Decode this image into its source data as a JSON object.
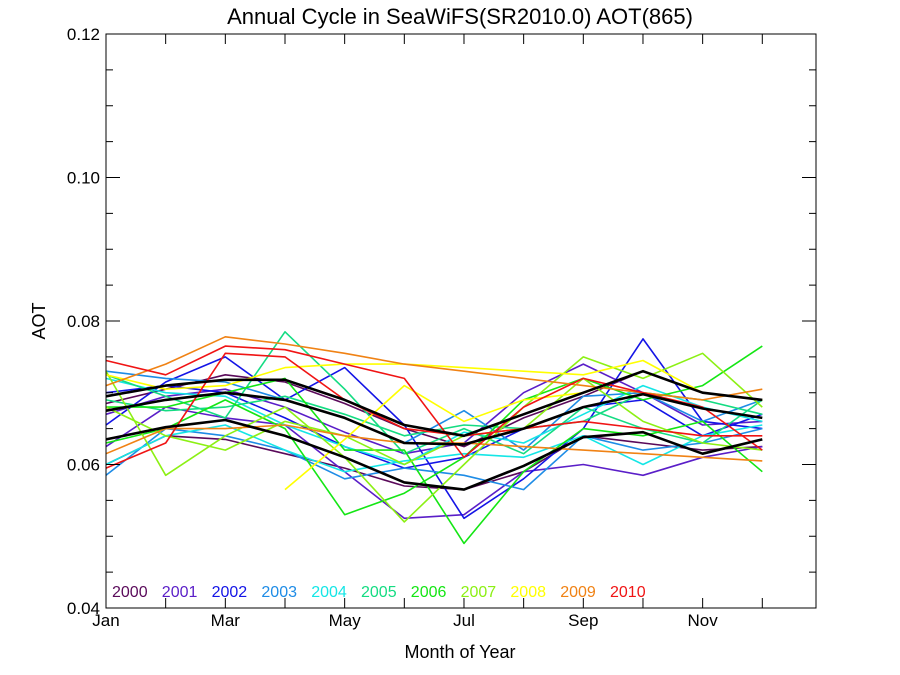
{
  "chart_data": {
    "type": "line",
    "title": "Annual Cycle in SeaWiFS(SR2010.0) AOT(865)",
    "xlabel": "Month of Year",
    "ylabel": "AOT",
    "xlim": [
      1,
      12.9
    ],
    "ylim": [
      0.04,
      0.12
    ],
    "x_ticks": [
      {
        "value": 1,
        "label": "Jan"
      },
      {
        "value": 3,
        "label": "Mar"
      },
      {
        "value": 5,
        "label": "May"
      },
      {
        "value": 7,
        "label": "Jul"
      },
      {
        "value": 9,
        "label": "Sep"
      },
      {
        "value": 11,
        "label": "Nov"
      }
    ],
    "y_ticks": [
      {
        "value": 0.04,
        "label": "0.04"
      },
      {
        "value": 0.06,
        "label": "0.06"
      },
      {
        "value": 0.08,
        "label": "0.08"
      },
      {
        "value": 0.1,
        "label": "0.10"
      },
      {
        "value": 0.12,
        "label": "0.12"
      }
    ],
    "legend_position": "bottom-left",
    "series": [
      {
        "name": "2000",
        "color": "#5a0a5a",
        "x": [
          1,
          2,
          3,
          4,
          5,
          6,
          7,
          8,
          9,
          10,
          11,
          12
        ],
        "values": [
          0.06,
          0.064,
          0.0635,
          0.0615,
          0.0595,
          0.057,
          0.0565,
          0.059,
          0.064,
          0.063,
          0.062,
          0.0625
        ]
      },
      {
        "name": "2000",
        "color": "#5a0a5a",
        "x": [
          1,
          2,
          3,
          4,
          5,
          6,
          7,
          8,
          9,
          10,
          11,
          12
        ],
        "values": [
          0.0685,
          0.0705,
          0.0725,
          0.0715,
          0.0685,
          0.065,
          0.0625,
          0.0665,
          0.0695,
          0.073,
          0.07,
          0.069
        ]
      },
      {
        "name": "2001",
        "color": "#5a1ec8",
        "x": [
          1,
          2,
          3,
          4,
          5,
          6,
          7,
          8,
          9,
          10,
          11,
          12
        ],
        "values": [
          0.0625,
          0.068,
          0.0665,
          0.0655,
          0.059,
          0.0525,
          0.053,
          0.059,
          0.06,
          0.0585,
          0.061,
          0.0625
        ]
      },
      {
        "name": "2001",
        "color": "#5a1ec8",
        "x": [
          1,
          2,
          3,
          4,
          5,
          6,
          7,
          8,
          9,
          10,
          11,
          12
        ],
        "values": [
          0.067,
          0.0695,
          0.0705,
          0.068,
          0.0645,
          0.0615,
          0.063,
          0.07,
          0.074,
          0.07,
          0.0655,
          0.066
        ]
      },
      {
        "name": "2002",
        "color": "#1414e6",
        "x": [
          1,
          2,
          3,
          4,
          5,
          6,
          7,
          8,
          9,
          10,
          11,
          12
        ],
        "values": [
          0.0655,
          0.0715,
          0.075,
          0.069,
          0.0735,
          0.0655,
          0.0525,
          0.058,
          0.065,
          0.0775,
          0.066,
          0.065
        ]
      },
      {
        "name": "2002",
        "color": "#1414e6",
        "x": [
          1,
          2,
          3,
          4,
          5,
          6,
          7,
          8,
          9,
          10,
          11,
          12
        ],
        "values": [
          0.07,
          0.071,
          0.07,
          0.0665,
          0.0625,
          0.0595,
          0.061,
          0.065,
          0.068,
          0.069,
          0.064,
          0.067
        ]
      },
      {
        "name": "2003",
        "color": "#1e8ce6",
        "x": [
          1,
          2,
          3,
          4,
          5,
          6,
          7,
          8,
          9,
          10,
          11,
          12
        ],
        "values": [
          0.0585,
          0.065,
          0.064,
          0.062,
          0.058,
          0.0595,
          0.0585,
          0.0565,
          0.064,
          0.062,
          0.063,
          0.065
        ]
      },
      {
        "name": "2003",
        "color": "#1e8ce6",
        "x": [
          1,
          2,
          3,
          4,
          5,
          6,
          7,
          8,
          9,
          10,
          11,
          12
        ],
        "values": [
          0.073,
          0.072,
          0.0715,
          0.069,
          0.0665,
          0.063,
          0.0675,
          0.062,
          0.0695,
          0.07,
          0.066,
          0.069
        ]
      },
      {
        "name": "2004",
        "color": "#14e6e6",
        "x": [
          1,
          2,
          3,
          4,
          5,
          6,
          7,
          8,
          9,
          10,
          11,
          12
        ],
        "values": [
          0.06,
          0.064,
          0.0655,
          0.062,
          0.059,
          0.0605,
          0.0615,
          0.061,
          0.064,
          0.06,
          0.064,
          0.0655
        ]
      },
      {
        "name": "2004",
        "color": "#14e6e6",
        "x": [
          1,
          2,
          3,
          4,
          5,
          6,
          7,
          8,
          9,
          10,
          11,
          12
        ],
        "values": [
          0.072,
          0.07,
          0.0695,
          0.0655,
          0.0625,
          0.06,
          0.0645,
          0.063,
          0.067,
          0.071,
          0.068,
          0.066
        ]
      },
      {
        "name": "2005",
        "color": "#14dc82",
        "x": [
          1,
          2,
          3,
          4,
          5,
          6,
          7,
          8,
          9,
          10,
          11,
          12
        ],
        "values": [
          0.0725,
          0.0695,
          0.0665,
          0.0785,
          0.0705,
          0.0615,
          0.065,
          0.0615,
          0.068,
          0.065,
          0.063,
          0.069
        ]
      },
      {
        "name": "2005",
        "color": "#14dc82",
        "x": [
          1,
          2,
          3,
          4,
          5,
          6,
          7,
          8,
          9,
          10,
          11,
          12
        ],
        "values": [
          0.069,
          0.0675,
          0.068,
          0.0695,
          0.067,
          0.064,
          0.0655,
          0.065,
          0.066,
          0.07,
          0.069,
          0.067
        ]
      },
      {
        "name": "2006",
        "color": "#14e614",
        "x": [
          1,
          2,
          3,
          4,
          5,
          6,
          7,
          8,
          9,
          10,
          11,
          12
        ],
        "values": [
          0.068,
          0.068,
          0.07,
          0.072,
          0.062,
          0.062,
          0.049,
          0.059,
          0.065,
          0.064,
          0.066,
          0.059
        ]
      },
      {
        "name": "2006",
        "color": "#14e614",
        "x": [
          1,
          2,
          3,
          4,
          5,
          6,
          7,
          8,
          9,
          10,
          11,
          12
        ],
        "values": [
          0.063,
          0.065,
          0.069,
          0.065,
          0.053,
          0.056,
          0.061,
          0.069,
          0.072,
          0.069,
          0.071,
          0.0765
        ]
      },
      {
        "name": "2007",
        "color": "#8cf014",
        "x": [
          1,
          2,
          3,
          4,
          5,
          6,
          7,
          8,
          9,
          10,
          11,
          12
        ],
        "values": [
          0.073,
          0.0585,
          0.064,
          0.068,
          0.061,
          0.052,
          0.06,
          0.068,
          0.075,
          0.072,
          0.0755,
          0.068
        ]
      },
      {
        "name": "2007",
        "color": "#8cf014",
        "x": [
          1,
          2,
          3,
          4,
          5,
          6,
          7,
          8,
          9,
          10,
          11,
          12
        ],
        "values": [
          0.068,
          0.064,
          0.062,
          0.066,
          0.064,
          0.06,
          0.064,
          0.065,
          0.072,
          0.066,
          0.063,
          0.062
        ]
      },
      {
        "name": "2008",
        "color": "#ffff00",
        "x": [
          1,
          2,
          3,
          4,
          5,
          6,
          7,
          8,
          9,
          10,
          11,
          12
        ],
        "values": [
          0.0725,
          0.0705,
          0.071,
          0.0735,
          0.074,
          0.074,
          0.0735,
          0.073,
          0.0725,
          0.0745,
          0.07,
          0.069
        ]
      },
      {
        "name": "2008",
        "color": "#ffff00",
        "x": [
          4,
          5,
          6,
          7,
          8,
          9,
          10,
          11,
          12
        ],
        "values": [
          0.0565,
          0.0635,
          0.071,
          0.066,
          0.069,
          0.07,
          0.073,
          0.07,
          0.069
        ]
      },
      {
        "name": "2009",
        "color": "#f08214",
        "x": [
          1,
          2,
          3,
          4,
          5,
          6,
          7,
          8,
          9,
          10,
          11,
          12
        ],
        "values": [
          0.071,
          0.074,
          0.0778,
          0.0768,
          0.0755,
          0.074,
          0.073,
          0.072,
          0.071,
          0.07,
          0.069,
          0.0705
        ]
      },
      {
        "name": "2009",
        "color": "#f08214",
        "x": [
          1,
          2,
          3,
          4,
          5,
          6,
          7,
          8,
          9,
          10,
          11,
          12
        ],
        "values": [
          0.0615,
          0.065,
          0.065,
          0.0655,
          0.064,
          0.063,
          0.063,
          0.0625,
          0.062,
          0.0615,
          0.061,
          0.0605
        ]
      },
      {
        "name": "2010",
        "color": "#f01414",
        "x": [
          1,
          2,
          3,
          4,
          5,
          6,
          7,
          8,
          9,
          10,
          11,
          12
        ],
        "values": [
          0.0745,
          0.0725,
          0.0765,
          0.076,
          0.074,
          0.072,
          0.061,
          0.068,
          0.072,
          0.07,
          0.068,
          0.062
        ]
      },
      {
        "name": "2010",
        "color": "#f01414",
        "x": [
          1,
          2,
          3,
          4,
          5,
          6,
          7,
          8,
          9,
          10,
          11,
          12
        ],
        "values": [
          0.0595,
          0.063,
          0.0755,
          0.075,
          0.069,
          0.065,
          0.064,
          0.065,
          0.066,
          0.065,
          0.064,
          0.064
        ]
      },
      {
        "name": "",
        "color": "#000000",
        "x": [
          1,
          2,
          3,
          4,
          5,
          6,
          7,
          8,
          9,
          10,
          11,
          12
        ],
        "values": [
          0.0695,
          0.071,
          0.0718,
          0.0718,
          0.069,
          0.0655,
          0.064,
          0.067,
          0.07,
          0.073,
          0.07,
          0.069
        ]
      },
      {
        "name": "",
        "color": "#000000",
        "x": [
          1,
          2,
          3,
          4,
          5,
          6,
          7,
          8,
          9,
          10,
          11,
          12
        ],
        "values": [
          0.0675,
          0.069,
          0.07,
          0.069,
          0.0665,
          0.063,
          0.0628,
          0.065,
          0.068,
          0.0698,
          0.0678,
          0.0665
        ]
      },
      {
        "name": "",
        "color": "#000000",
        "x": [
          1,
          2,
          3,
          4,
          5,
          6,
          7,
          8,
          9,
          10,
          11,
          12
        ],
        "values": [
          0.0635,
          0.0652,
          0.0662,
          0.064,
          0.061,
          0.0575,
          0.0565,
          0.0598,
          0.0638,
          0.0645,
          0.0615,
          0.0635
        ]
      }
    ],
    "legend": [
      {
        "label": "2000",
        "color": "#5a0a5a"
      },
      {
        "label": "2001",
        "color": "#5a1ec8"
      },
      {
        "label": "2002",
        "color": "#1414e6"
      },
      {
        "label": "2003",
        "color": "#1e8ce6"
      },
      {
        "label": "2004",
        "color": "#14e6e6"
      },
      {
        "label": "2005",
        "color": "#14dc82"
      },
      {
        "label": "2006",
        "color": "#14e614"
      },
      {
        "label": "2007",
        "color": "#8cf014"
      },
      {
        "label": "2008",
        "color": "#ffff00"
      },
      {
        "label": "2009",
        "color": "#f08214"
      },
      {
        "label": "2010",
        "color": "#f01414"
      }
    ]
  }
}
